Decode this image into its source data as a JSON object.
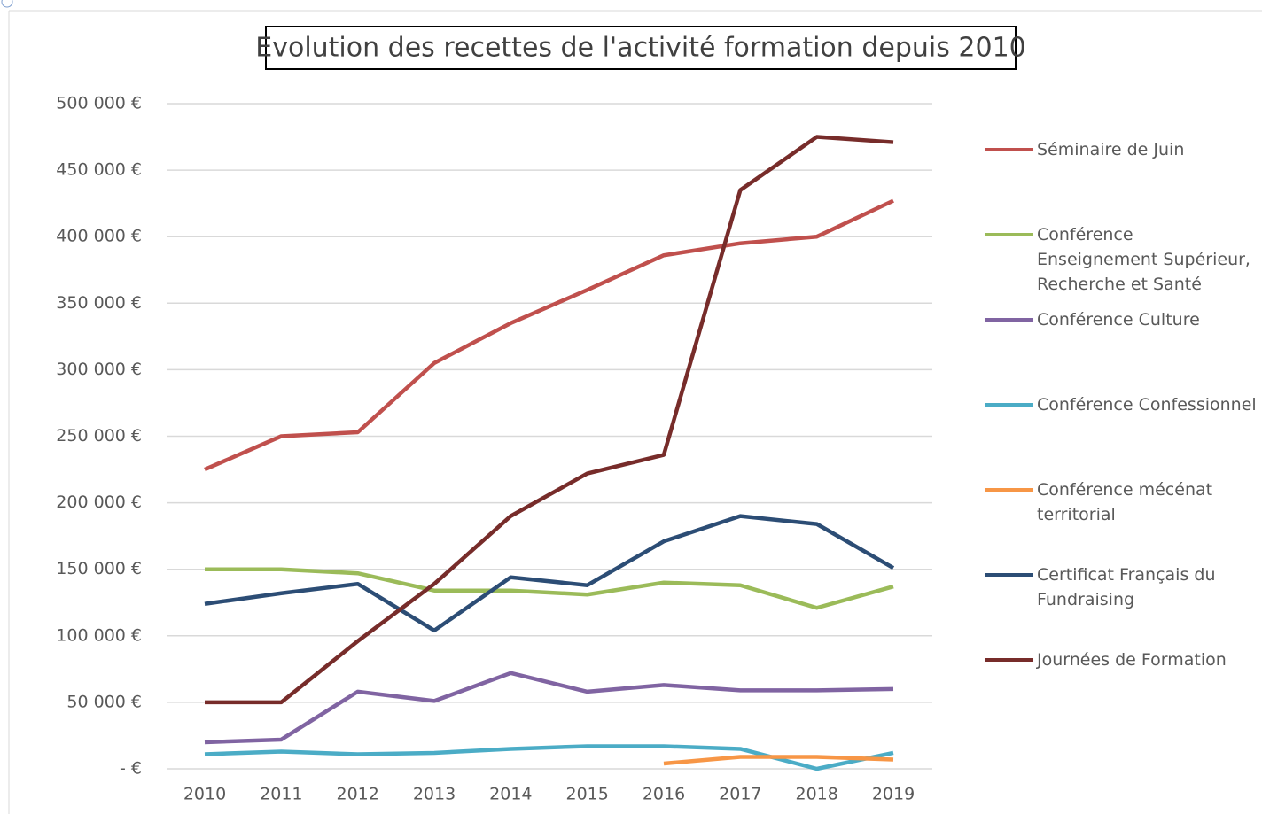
{
  "chart_data": {
    "type": "line",
    "title": "Evolution des recettes de l'activité formation depuis 2010",
    "categories": [
      "2010",
      "2011",
      "2012",
      "2013",
      "2014",
      "2015",
      "2016",
      "2017",
      "2018",
      "2019"
    ],
    "series": [
      {
        "name": "Séminaire de Juin",
        "color": "#c0504d",
        "values": [
          225000,
          250000,
          253000,
          305000,
          335000,
          360000,
          386000,
          395000,
          400000,
          427000
        ]
      },
      {
        "name": "Conférence Enseignement Supérieur, Recherche et Santé",
        "color": "#9bbb59",
        "values": [
          150000,
          150000,
          147000,
          134000,
          134000,
          131000,
          140000,
          138000,
          121000,
          137000
        ]
      },
      {
        "name": "Conférence Culture",
        "color": "#8064a2",
        "values": [
          20000,
          22000,
          58000,
          51000,
          72000,
          58000,
          63000,
          59000,
          59000,
          60000
        ]
      },
      {
        "name": "Conférence Confessionnel",
        "color": "#4bacc6",
        "values": [
          11000,
          13000,
          11000,
          12000,
          15000,
          17000,
          17000,
          15000,
          0,
          12000
        ]
      },
      {
        "name": "Conférence mécénat territorial",
        "color": "#f79646",
        "values": [
          null,
          null,
          null,
          null,
          null,
          null,
          4000,
          9000,
          9000,
          7000
        ]
      },
      {
        "name": "Certificat Français du Fundraising",
        "color": "#2c4d75",
        "values": [
          124000,
          132000,
          139000,
          104000,
          144000,
          138000,
          171000,
          190000,
          184000,
          151000
        ]
      },
      {
        "name": "Journées de Formation",
        "color": "#772c2a",
        "values": [
          50000,
          50000,
          96000,
          139000,
          190000,
          222000,
          236000,
          435000,
          475000,
          471000
        ]
      }
    ],
    "ylim": [
      0,
      500000
    ],
    "yticks": [
      {
        "value": 0,
        "label": "-   €"
      },
      {
        "value": 50000,
        "label": "50 000 €"
      },
      {
        "value": 100000,
        "label": "100 000 €"
      },
      {
        "value": 150000,
        "label": "150 000 €"
      },
      {
        "value": 200000,
        "label": "200 000 €"
      },
      {
        "value": 250000,
        "label": "250 000 €"
      },
      {
        "value": 300000,
        "label": "300 000 €"
      },
      {
        "value": 350000,
        "label": "350 000 €"
      },
      {
        "value": 400000,
        "label": "400 000 €"
      },
      {
        "value": 450000,
        "label": "450 000 €"
      },
      {
        "value": 500000,
        "label": "500 000 €"
      }
    ],
    "grid": true,
    "legend": "right"
  }
}
